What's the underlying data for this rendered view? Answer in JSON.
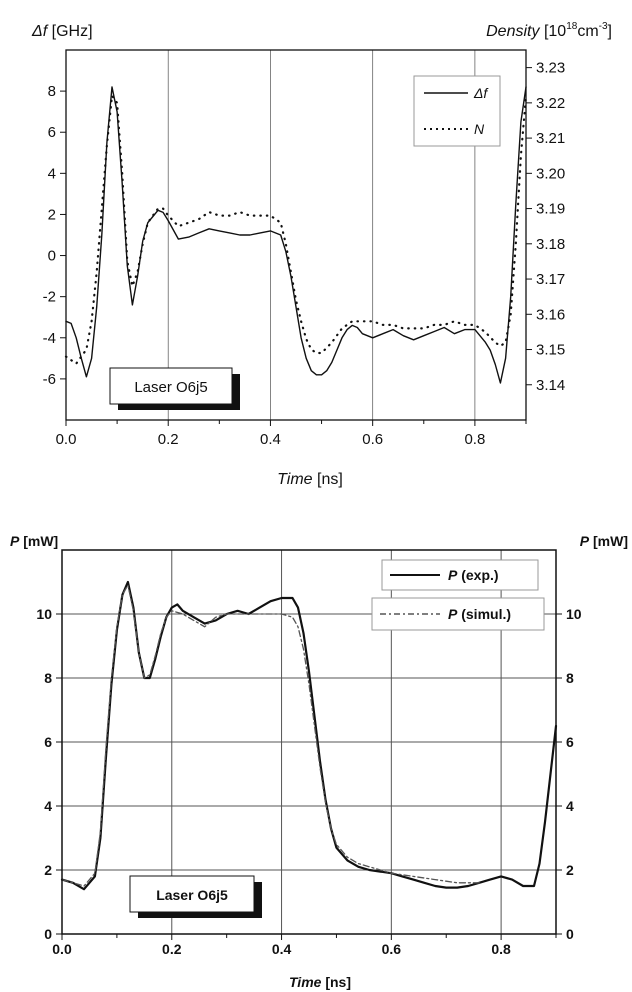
{
  "chart_data": [
    {
      "type": "line",
      "xlabel": "Time",
      "xlabel_unit": "[ns]",
      "ylabel": "Δf",
      "ylabel_unit": "[GHz]",
      "y2label": "Density",
      "y2label_unit": "[10",
      "y2label_exp": "18",
      "y2label_unit2": "cm",
      "y2label_exp2": "-3",
      "y2label_end": "]",
      "xlim": [
        0.0,
        0.9
      ],
      "ylim": [
        -8,
        10
      ],
      "y2lim": [
        3.13,
        3.235
      ],
      "xticks": [
        0.0,
        0.2,
        0.4,
        0.6,
        0.8
      ],
      "xtick_labels": [
        "0.0",
        "0.2",
        "0.4",
        "0.6",
        "0.8"
      ],
      "yticks": [
        -6,
        -4,
        -2,
        0,
        2,
        4,
        6,
        8
      ],
      "ytick_labels": [
        "-6",
        "-4",
        "-2",
        "0",
        "2",
        "4",
        "6",
        "8"
      ],
      "y2ticks": [
        3.14,
        3.15,
        3.16,
        3.17,
        3.18,
        3.19,
        3.2,
        3.21,
        3.22,
        3.23
      ],
      "y2tick_labels": [
        "3.14",
        "3.15",
        "3.16",
        "3.17",
        "3.18",
        "3.19",
        "3.20",
        "3.21",
        "3.22",
        "3.23"
      ],
      "grid": true,
      "legend_position": "top-right",
      "annotation": "Laser O6j5",
      "series": [
        {
          "name": "Δf",
          "style": "solid",
          "x": [
            0.0,
            0.01,
            0.02,
            0.03,
            0.04,
            0.05,
            0.06,
            0.07,
            0.08,
            0.09,
            0.1,
            0.11,
            0.12,
            0.13,
            0.14,
            0.15,
            0.16,
            0.17,
            0.18,
            0.19,
            0.2,
            0.22,
            0.24,
            0.26,
            0.28,
            0.3,
            0.32,
            0.34,
            0.36,
            0.38,
            0.4,
            0.42,
            0.43,
            0.44,
            0.45,
            0.46,
            0.47,
            0.48,
            0.49,
            0.5,
            0.51,
            0.52,
            0.53,
            0.54,
            0.55,
            0.56,
            0.57,
            0.58,
            0.6,
            0.62,
            0.64,
            0.66,
            0.68,
            0.7,
            0.72,
            0.74,
            0.76,
            0.78,
            0.8,
            0.82,
            0.83,
            0.84,
            0.85,
            0.86,
            0.87,
            0.88,
            0.89,
            0.9
          ],
          "values": [
            -3.2,
            -3.3,
            -4.0,
            -5.0,
            -5.9,
            -5.0,
            -2.5,
            1.0,
            5.5,
            8.2,
            7.0,
            3.5,
            -0.5,
            -2.4,
            -1.0,
            0.7,
            1.6,
            1.9,
            2.2,
            2.1,
            1.7,
            0.8,
            0.9,
            1.1,
            1.3,
            1.2,
            1.1,
            1.0,
            1.0,
            1.1,
            1.2,
            1.0,
            0.2,
            -1.0,
            -2.5,
            -4.0,
            -5.0,
            -5.6,
            -5.8,
            -5.8,
            -5.6,
            -5.2,
            -4.6,
            -4.0,
            -3.6,
            -3.4,
            -3.5,
            -3.8,
            -4.0,
            -3.8,
            -3.6,
            -3.9,
            -4.1,
            -3.9,
            -3.7,
            -3.5,
            -3.8,
            -3.6,
            -3.6,
            -4.2,
            -4.6,
            -5.3,
            -6.2,
            -5.0,
            -2.0,
            2.5,
            6.5,
            8.2
          ]
        },
        {
          "name": "N",
          "style": "dotted",
          "x": [
            0.0,
            0.02,
            0.04,
            0.05,
            0.06,
            0.07,
            0.08,
            0.09,
            0.1,
            0.11,
            0.12,
            0.13,
            0.14,
            0.15,
            0.16,
            0.17,
            0.18,
            0.19,
            0.2,
            0.22,
            0.24,
            0.26,
            0.28,
            0.3,
            0.32,
            0.34,
            0.36,
            0.38,
            0.4,
            0.42,
            0.43,
            0.44,
            0.45,
            0.46,
            0.47,
            0.48,
            0.49,
            0.5,
            0.52,
            0.54,
            0.56,
            0.58,
            0.6,
            0.62,
            0.64,
            0.66,
            0.68,
            0.7,
            0.72,
            0.74,
            0.76,
            0.78,
            0.8,
            0.82,
            0.84,
            0.85,
            0.86,
            0.87,
            0.88,
            0.89,
            0.9
          ],
          "values": [
            3.148,
            3.146,
            3.15,
            3.158,
            3.172,
            3.19,
            3.208,
            3.222,
            3.22,
            3.2,
            3.175,
            3.168,
            3.172,
            3.18,
            3.186,
            3.188,
            3.19,
            3.19,
            3.188,
            3.185,
            3.186,
            3.187,
            3.189,
            3.188,
            3.188,
            3.189,
            3.188,
            3.188,
            3.188,
            3.186,
            3.18,
            3.172,
            3.164,
            3.158,
            3.153,
            3.15,
            3.149,
            3.149,
            3.152,
            3.156,
            3.158,
            3.158,
            3.158,
            3.157,
            3.157,
            3.156,
            3.156,
            3.156,
            3.157,
            3.157,
            3.158,
            3.157,
            3.157,
            3.155,
            3.152,
            3.151,
            3.152,
            3.16,
            3.18,
            3.205,
            3.222
          ],
          "axis": "right"
        }
      ]
    },
    {
      "type": "line",
      "xlabel": "Time",
      "xlabel_unit": "[ns]",
      "ylabel": "P",
      "ylabel_unit": "[mW]",
      "y2label": "P",
      "y2label_unit": "[mW]",
      "xlim": [
        0.0,
        0.9
      ],
      "ylim": [
        0,
        12
      ],
      "xticks": [
        0.0,
        0.2,
        0.4,
        0.6,
        0.8
      ],
      "xtick_labels": [
        "0.0",
        "0.2",
        "0.4",
        "0.6",
        "0.8"
      ],
      "yticks": [
        0,
        2,
        4,
        6,
        8,
        10
      ],
      "ytick_labels": [
        "0",
        "2",
        "4",
        "6",
        "8",
        "10"
      ],
      "grid": true,
      "legend_position": "top-right",
      "annotation": "Laser O6j5",
      "series": [
        {
          "name": "P",
          "name_suffix": "(exp.)",
          "style": "solid",
          "x": [
            0.0,
            0.02,
            0.04,
            0.06,
            0.07,
            0.08,
            0.09,
            0.1,
            0.11,
            0.12,
            0.13,
            0.14,
            0.15,
            0.16,
            0.17,
            0.18,
            0.19,
            0.2,
            0.21,
            0.22,
            0.24,
            0.26,
            0.28,
            0.3,
            0.32,
            0.34,
            0.36,
            0.38,
            0.4,
            0.42,
            0.43,
            0.44,
            0.45,
            0.46,
            0.47,
            0.48,
            0.49,
            0.5,
            0.52,
            0.54,
            0.56,
            0.58,
            0.6,
            0.62,
            0.64,
            0.66,
            0.68,
            0.7,
            0.72,
            0.74,
            0.76,
            0.78,
            0.8,
            0.82,
            0.84,
            0.86,
            0.87,
            0.88,
            0.89,
            0.9
          ],
          "values": [
            1.7,
            1.6,
            1.4,
            1.8,
            3.0,
            5.5,
            7.8,
            9.5,
            10.6,
            11.0,
            10.2,
            8.8,
            8.0,
            8.0,
            8.6,
            9.3,
            9.9,
            10.2,
            10.3,
            10.1,
            9.9,
            9.7,
            9.8,
            10.0,
            10.1,
            10.0,
            10.2,
            10.4,
            10.5,
            10.5,
            10.2,
            9.4,
            8.2,
            6.8,
            5.4,
            4.2,
            3.3,
            2.7,
            2.3,
            2.1,
            2.0,
            1.95,
            1.9,
            1.8,
            1.7,
            1.6,
            1.5,
            1.45,
            1.45,
            1.5,
            1.6,
            1.7,
            1.8,
            1.7,
            1.5,
            1.5,
            2.2,
            3.5,
            5.0,
            6.5
          ]
        },
        {
          "name": "P",
          "name_suffix": "(simul.)",
          "style": "dash-dot",
          "x": [
            0.0,
            0.02,
            0.04,
            0.06,
            0.07,
            0.08,
            0.09,
            0.1,
            0.11,
            0.12,
            0.13,
            0.14,
            0.15,
            0.16,
            0.17,
            0.18,
            0.19,
            0.2,
            0.22,
            0.24,
            0.26,
            0.28,
            0.3,
            0.32,
            0.34,
            0.36,
            0.38,
            0.4,
            0.42,
            0.43,
            0.44,
            0.45,
            0.46,
            0.47,
            0.48,
            0.49,
            0.5,
            0.52,
            0.54,
            0.56,
            0.58,
            0.6,
            0.62,
            0.64,
            0.66,
            0.68,
            0.7,
            0.72,
            0.74,
            0.76
          ],
          "values": [
            1.7,
            1.6,
            1.5,
            1.9,
            3.2,
            5.8,
            8.0,
            9.6,
            10.6,
            10.9,
            10.1,
            8.8,
            8.0,
            8.1,
            8.7,
            9.4,
            9.9,
            10.1,
            10.0,
            9.8,
            9.6,
            9.9,
            10.0,
            10.0,
            10.0,
            10.0,
            10.0,
            10.0,
            9.9,
            9.6,
            8.9,
            7.8,
            6.5,
            5.2,
            4.1,
            3.3,
            2.8,
            2.4,
            2.2,
            2.1,
            2.0,
            1.9,
            1.85,
            1.8,
            1.75,
            1.7,
            1.65,
            1.6,
            1.6,
            1.6
          ]
        }
      ]
    }
  ]
}
